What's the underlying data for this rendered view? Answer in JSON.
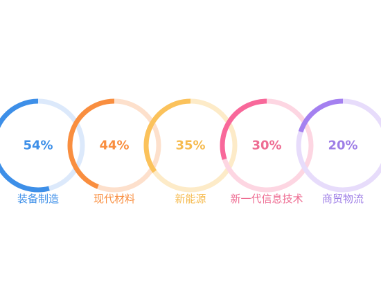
{
  "chart_data": {
    "type": "pie",
    "title": "",
    "legend": "none",
    "items": [
      {
        "label": "装备制造",
        "value": 54,
        "value_text": "54%",
        "color": "#3d8fe8",
        "track": "#dce9fb",
        "text_color": "#3d8fe8"
      },
      {
        "label": "现代材料",
        "value": 44,
        "value_text": "44%",
        "color": "#f98e3f",
        "track": "#fde0cc",
        "text_color": "#f98e3f"
      },
      {
        "label": "新能源",
        "value": 35,
        "value_text": "35%",
        "color": "#fbc25b",
        "track": "#fdebc8",
        "text_color": "#f6bb4f"
      },
      {
        "label": "新一代信息技术",
        "value": 30,
        "value_text": "30%",
        "color": "#f8689a",
        "track": "#fdd6e2",
        "text_color": "#ee6c92"
      },
      {
        "label": "商贸物流",
        "value": 20,
        "value_text": "20%",
        "color": "#a480f0",
        "track": "#e7dcfb",
        "text_color": "#9e7ee6"
      }
    ]
  }
}
